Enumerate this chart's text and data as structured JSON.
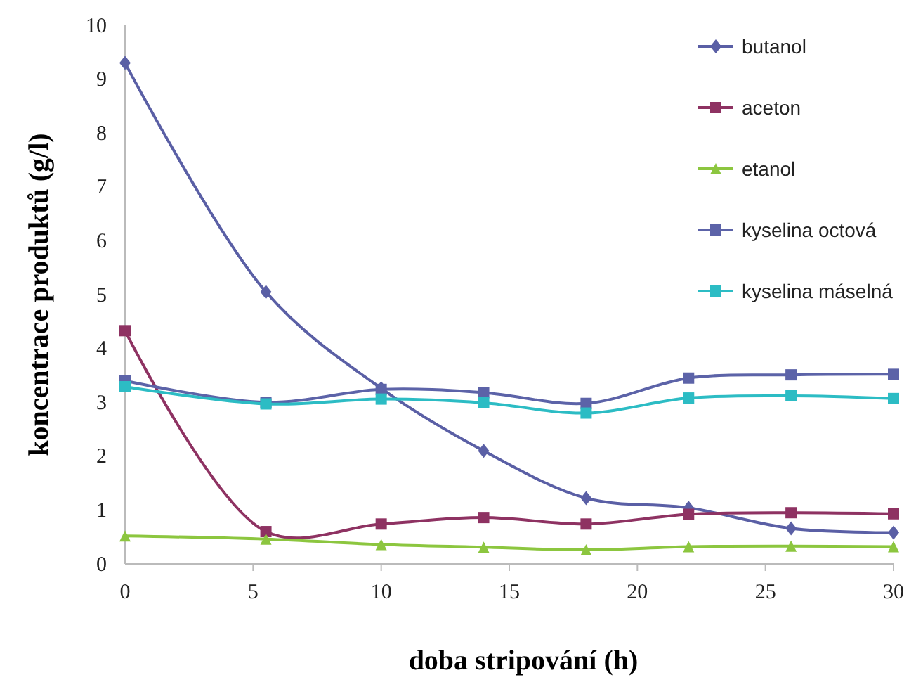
{
  "chart_data": {
    "type": "line",
    "xlabel": "doba stripování (h)",
    "ylabel": "koncentrace produktů (g/l)",
    "x": [
      0,
      5.5,
      10,
      14,
      18,
      22,
      26,
      30
    ],
    "xlim": [
      0,
      30
    ],
    "xticks": [
      0,
      5,
      10,
      15,
      20,
      25,
      30
    ],
    "ylim": [
      0,
      10
    ],
    "yticks": [
      0,
      1,
      2,
      3,
      4,
      5,
      6,
      7,
      8,
      9,
      10
    ],
    "grid": false,
    "legend": "top right",
    "series": [
      {
        "name": "butanol",
        "color": "#5a5fa5",
        "marker": "diamond",
        "values": [
          9.3,
          5.05,
          3.26,
          2.1,
          1.22,
          1.04,
          0.66,
          0.58
        ]
      },
      {
        "name": "aceton",
        "color": "#8e3262",
        "marker": "square",
        "values": [
          4.33,
          0.6,
          0.74,
          0.86,
          0.74,
          0.92,
          0.95,
          0.93
        ]
      },
      {
        "name": "etanol",
        "color": "#8cc63f",
        "marker": "triangle",
        "values": [
          0.52,
          0.46,
          0.36,
          0.31,
          0.26,
          0.32,
          0.33,
          0.32
        ]
      },
      {
        "name": "kyselina octová",
        "color": "#5c63a8",
        "marker": "square",
        "values": [
          3.4,
          3.0,
          3.24,
          3.18,
          2.98,
          3.45,
          3.51,
          3.52
        ]
      },
      {
        "name": "kyselina máselná",
        "color": "#2cbcc4",
        "marker": "square",
        "values": [
          3.29,
          2.97,
          3.06,
          2.99,
          2.8,
          3.08,
          3.12,
          3.07
        ]
      }
    ]
  }
}
